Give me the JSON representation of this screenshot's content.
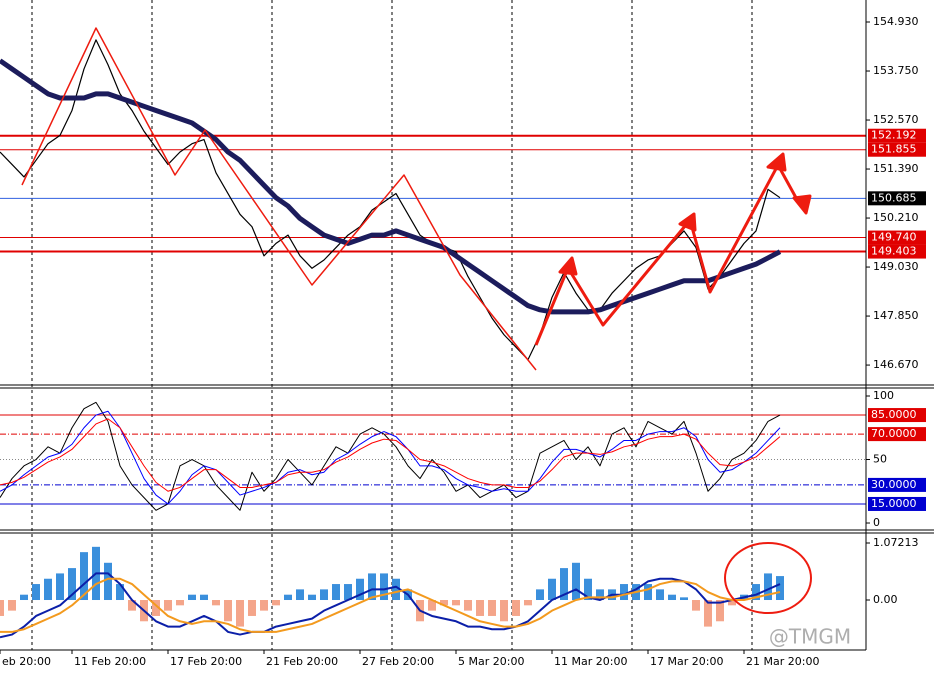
{
  "chart_data": [
    {
      "type": "line",
      "ylim": [
        146.19,
        155.46
      ],
      "yticks": [
        {
          "value": 154.93,
          "label": "154.930"
        },
        {
          "value": 153.75,
          "label": "153.750"
        },
        {
          "value": 152.57,
          "label": "152.570"
        },
        {
          "value": 151.39,
          "label": "151.390"
        },
        {
          "value": 150.21,
          "label": "150.210"
        },
        {
          "value": 149.03,
          "label": "149.030"
        },
        {
          "value": 147.85,
          "label": "147.850"
        },
        {
          "value": 146.67,
          "label": "146.670"
        }
      ],
      "levels": [
        {
          "value": 152.192,
          "label": "152.192",
          "color": "#e00000",
          "style": "solid",
          "width": 2
        },
        {
          "value": 151.855,
          "label": "151.855",
          "color": "#e00000",
          "style": "solid",
          "width": 1
        },
        {
          "value": 150.685,
          "label": "150.685",
          "color": "#3060e0",
          "style": "solid",
          "width": 1,
          "box": "#000000"
        },
        {
          "value": 149.74,
          "label": "149.740",
          "color": "#e00000",
          "style": "solid",
          "width": 1
        },
        {
          "value": 149.403,
          "label": "149.403",
          "color": "#e00000",
          "style": "solid",
          "width": 2
        }
      ],
      "series": [
        {
          "color": "#000000",
          "width": 1.2,
          "values": [
            151.8,
            151.5,
            151.2,
            151.6,
            152.0,
            152.2,
            152.8,
            153.8,
            154.5,
            153.9,
            153.2,
            152.8,
            152.3,
            151.9,
            151.5,
            151.8,
            152.0,
            152.1,
            151.3,
            150.8,
            150.3,
            150.0,
            149.3,
            149.6,
            149.8,
            149.3,
            149.0,
            149.2,
            149.5,
            149.8,
            150.0,
            150.4,
            150.6,
            150.8,
            150.3,
            149.8,
            149.6,
            149.5,
            149.4,
            148.8,
            148.3,
            147.8,
            147.4,
            147.1,
            146.8,
            147.4,
            148.3,
            148.9,
            148.4,
            148.0,
            148.0,
            148.4,
            148.7,
            149.0,
            149.2,
            149.3,
            149.6,
            149.9,
            149.5,
            148.5,
            148.8,
            149.2,
            149.6,
            149.9,
            150.9,
            150.7
          ]
        },
        {
          "color": "#1c1c5c",
          "width": 5,
          "values": [
            154.0,
            153.8,
            153.6,
            153.4,
            153.2,
            153.1,
            153.1,
            153.1,
            153.2,
            153.2,
            153.1,
            153.0,
            152.9,
            152.8,
            152.7,
            152.6,
            152.5,
            152.3,
            152.1,
            151.8,
            151.6,
            151.3,
            151.0,
            150.7,
            150.5,
            150.2,
            150.0,
            149.8,
            149.7,
            149.6,
            149.7,
            149.8,
            149.8,
            149.9,
            149.8,
            149.7,
            149.6,
            149.5,
            149.3,
            149.1,
            148.9,
            148.7,
            148.5,
            148.3,
            148.1,
            148.0,
            147.95,
            147.95,
            147.95,
            147.95,
            148.0,
            148.1,
            148.2,
            148.3,
            148.4,
            148.5,
            148.6,
            148.7,
            148.7,
            148.7,
            148.8,
            148.9,
            149.0,
            149.1,
            149.25,
            149.4
          ]
        }
      ]
    },
    {
      "type": "line",
      "ylim": [
        -5.5,
        106.3
      ],
      "yticks": [
        100,
        50,
        0
      ],
      "levels": [
        {
          "value": 85,
          "label": "85.0000",
          "color": "#e00000",
          "style": "solid",
          "width": 1
        },
        {
          "value": 70,
          "label": "70.0000",
          "color": "#e00000",
          "style": "dashdot",
          "width": 1
        },
        {
          "value": 50,
          "color": "#888888",
          "style": "dotted",
          "width": 1
        },
        {
          "value": 30,
          "label": "30.0000",
          "color": "#0000d0",
          "style": "dashdot",
          "width": 1
        },
        {
          "value": 15,
          "label": "15.0000",
          "color": "#0000d0",
          "style": "solid",
          "width": 1
        }
      ],
      "series": [
        {
          "color": "#000000",
          "width": 1,
          "values": [
            20,
            35,
            45,
            50,
            60,
            55,
            75,
            90,
            95,
            80,
            45,
            30,
            20,
            10,
            15,
            45,
            50,
            45,
            30,
            20,
            10,
            40,
            25,
            35,
            50,
            40,
            30,
            45,
            60,
            55,
            70,
            75,
            70,
            60,
            45,
            35,
            50,
            40,
            25,
            30,
            20,
            25,
            30,
            20,
            25,
            55,
            60,
            65,
            50,
            60,
            45,
            70,
            75,
            60,
            80,
            75,
            70,
            80,
            55,
            25,
            35,
            50,
            55,
            65,
            80,
            85
          ]
        },
        {
          "color": "#0000ff",
          "width": 1,
          "values": [
            25,
            30,
            38,
            45,
            52,
            55,
            62,
            75,
            85,
            88,
            75,
            55,
            35,
            22,
            15,
            25,
            38,
            45,
            42,
            32,
            22,
            25,
            28,
            32,
            40,
            42,
            38,
            40,
            50,
            55,
            62,
            68,
            72,
            68,
            58,
            45,
            45,
            42,
            35,
            30,
            28,
            25,
            27,
            25,
            25,
            35,
            48,
            58,
            58,
            55,
            52,
            58,
            65,
            65,
            70,
            72,
            72,
            75,
            68,
            50,
            40,
            42,
            48,
            55,
            65,
            75
          ]
        },
        {
          "color": "#ff0000",
          "width": 1,
          "values": [
            30,
            32,
            36,
            42,
            48,
            52,
            58,
            68,
            78,
            82,
            75,
            60,
            45,
            32,
            25,
            28,
            35,
            42,
            42,
            35,
            28,
            28,
            30,
            32,
            38,
            40,
            40,
            42,
            48,
            52,
            58,
            63,
            66,
            65,
            58,
            50,
            48,
            45,
            40,
            35,
            32,
            30,
            30,
            28,
            28,
            33,
            42,
            52,
            55,
            55,
            54,
            56,
            60,
            62,
            66,
            68,
            68,
            70,
            66,
            55,
            46,
            45,
            48,
            52,
            60,
            68
          ]
        }
      ]
    },
    {
      "type": "bar",
      "ylim": [
        -0.94,
        1.26
      ],
      "yticks": [
        1.07213,
        {
          "value": 0,
          "label": "0.00"
        }
      ],
      "categories": [
        "eb 20:00",
        null,
        null,
        null,
        null,
        null,
        "11 Feb 20:00",
        null,
        null,
        null,
        null,
        null,
        null,
        null,
        "17 Feb 20:00",
        null,
        null,
        null,
        null,
        null,
        null,
        null,
        "21 Feb 20:00",
        null,
        null,
        null,
        null,
        null,
        null,
        null,
        "27 Feb 20:00",
        null,
        null,
        null,
        null,
        null,
        null,
        null,
        "5 Mar 20:00",
        null,
        null,
        null,
        null,
        null,
        null,
        null,
        "11 Mar 20:00",
        null,
        null,
        null,
        null,
        null,
        null,
        null,
        "17 Mar 20:00",
        null,
        null,
        null,
        null,
        null,
        null,
        null,
        "21 Mar 20:00",
        null,
        null,
        null
      ],
      "watermark": "@TMGM",
      "series": [
        {
          "type": "bar",
          "color": "#3a8fdc",
          "negative_color": "#f4a58a",
          "values": [
            -0.3,
            -0.2,
            0.1,
            0.3,
            0.4,
            0.5,
            0.6,
            0.9,
            1.0,
            0.7,
            0.3,
            -0.2,
            -0.4,
            -0.3,
            -0.2,
            -0.1,
            0.1,
            0.1,
            -0.1,
            -0.4,
            -0.5,
            -0.3,
            -0.2,
            -0.1,
            0.1,
            0.2,
            0.1,
            0.2,
            0.3,
            0.3,
            0.4,
            0.5,
            0.5,
            0.4,
            0.2,
            -0.4,
            -0.2,
            -0.1,
            -0.1,
            -0.2,
            -0.3,
            -0.3,
            -0.4,
            -0.3,
            -0.1,
            0.2,
            0.4,
            0.6,
            0.7,
            0.4,
            0.2,
            0.2,
            0.3,
            0.3,
            0.3,
            0.2,
            0.1,
            0.05,
            -0.2,
            -0.5,
            -0.4,
            -0.1,
            0.1,
            0.3,
            0.5,
            0.45
          ]
        },
        {
          "type": "line",
          "color": "#0b1fa8",
          "width": 2,
          "values": [
            -0.7,
            -0.65,
            -0.5,
            -0.3,
            -0.2,
            -0.1,
            0.1,
            0.3,
            0.5,
            0.5,
            0.3,
            0.0,
            -0.2,
            -0.4,
            -0.5,
            -0.5,
            -0.4,
            -0.3,
            -0.4,
            -0.6,
            -0.65,
            -0.6,
            -0.6,
            -0.5,
            -0.45,
            -0.4,
            -0.35,
            -0.2,
            -0.1,
            0.0,
            0.1,
            0.2,
            0.2,
            0.25,
            0.1,
            -0.2,
            -0.3,
            -0.35,
            -0.4,
            -0.5,
            -0.5,
            -0.55,
            -0.55,
            -0.5,
            -0.4,
            -0.2,
            0.0,
            0.1,
            0.2,
            0.05,
            0.0,
            0.1,
            0.1,
            0.2,
            0.35,
            0.4,
            0.4,
            0.35,
            0.2,
            -0.05,
            -0.05,
            0.0,
            0.05,
            0.1,
            0.2,
            0.3
          ]
        },
        {
          "type": "line",
          "color": "#f39a1e",
          "width": 2,
          "values": [
            -0.6,
            -0.6,
            -0.55,
            -0.45,
            -0.35,
            -0.25,
            -0.1,
            0.1,
            0.3,
            0.4,
            0.4,
            0.3,
            0.1,
            -0.1,
            -0.3,
            -0.4,
            -0.45,
            -0.4,
            -0.4,
            -0.45,
            -0.55,
            -0.6,
            -0.6,
            -0.6,
            -0.55,
            -0.5,
            -0.45,
            -0.35,
            -0.25,
            -0.15,
            -0.05,
            0.05,
            0.1,
            0.15,
            0.2,
            0.1,
            0.0,
            -0.1,
            -0.2,
            -0.3,
            -0.4,
            -0.45,
            -0.5,
            -0.5,
            -0.45,
            -0.35,
            -0.2,
            -0.1,
            0.0,
            0.05,
            0.05,
            0.05,
            0.1,
            0.15,
            0.2,
            0.3,
            0.35,
            0.35,
            0.3,
            0.15,
            0.05,
            0.0,
            0.0,
            0.05,
            0.1,
            0.15
          ]
        }
      ]
    }
  ]
}
